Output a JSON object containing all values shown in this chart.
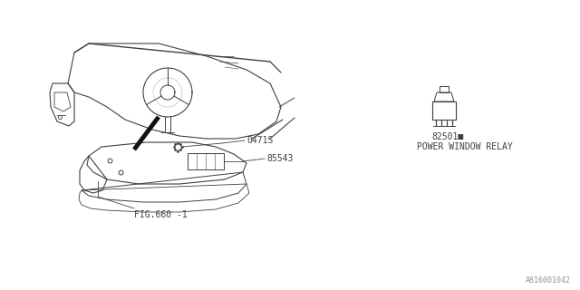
{
  "bg_color": "#ffffff",
  "line_color": "#404040",
  "text_color": "#404040",
  "fig_width": 6.4,
  "fig_height": 3.2,
  "dpi": 100,
  "part_label_0471S": "0471S",
  "part_label_85543": "85543",
  "part_label_relay": "82501■",
  "part_label_relay2": "POWER WINDOW RELAY",
  "part_label_fig": "FIG.660 -1",
  "watermark": "A816001042",
  "font_size_parts": 7,
  "font_size_watermark": 6
}
